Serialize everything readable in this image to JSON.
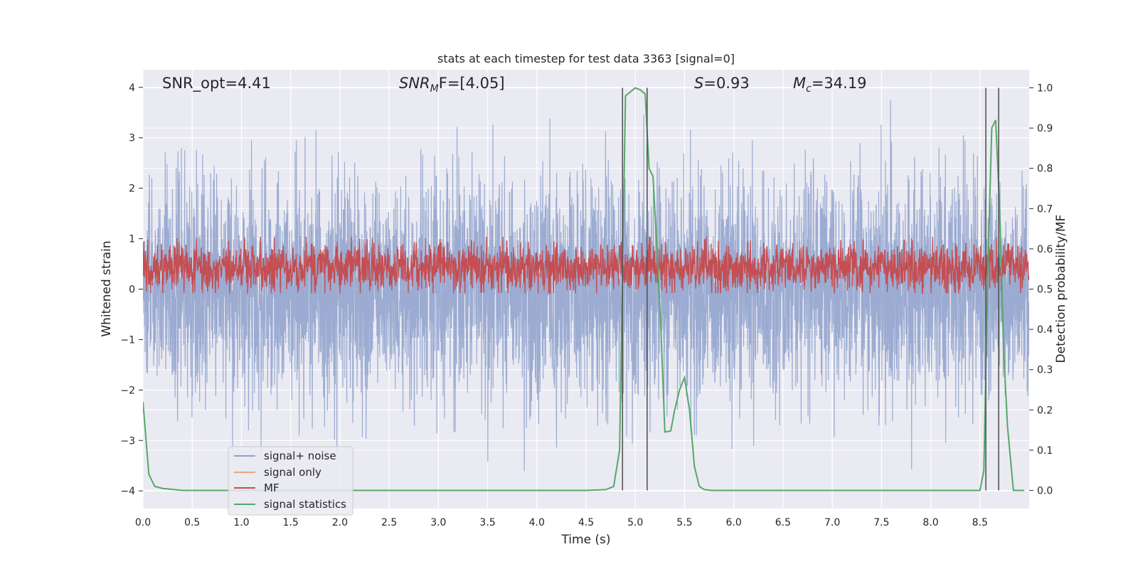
{
  "chart_data": {
    "type": "line",
    "title": "stats at each timestep for test data 3363 [signal=0]",
    "xlabel": "Time (s)",
    "ylabel": "Whitened strain",
    "y2label": "Detection probability/MF",
    "xlim": [
      0.0,
      9.0
    ],
    "ylim": [
      -4.35,
      4.35
    ],
    "y2lim": [
      -0.045,
      1.045
    ],
    "xticks": [
      0.0,
      0.5,
      1.0,
      1.5,
      2.0,
      2.5,
      3.0,
      3.5,
      4.0,
      4.5,
      5.0,
      5.5,
      6.0,
      6.5,
      7.0,
      7.5,
      8.0,
      8.5
    ],
    "xtick_labels": [
      "0.0",
      "0.5",
      "1.0",
      "1.5",
      "2.0",
      "2.5",
      "3.0",
      "3.5",
      "4.0",
      "4.5",
      "5.0",
      "5.5",
      "6.0",
      "6.5",
      "7.0",
      "7.5",
      "8.0",
      "8.5"
    ],
    "yticks": [
      4,
      3,
      2,
      1,
      0,
      -1,
      -2,
      -3,
      -4
    ],
    "ytick_labels": [
      "4",
      "3",
      "2",
      "1",
      "0",
      "−1",
      "−2",
      "−3",
      "−4"
    ],
    "y2ticks": [
      1.0,
      0.9,
      0.8,
      0.7,
      0.6,
      0.5,
      0.4,
      0.3,
      0.2,
      0.1,
      0.0
    ],
    "y2tick_labels": [
      "1.0",
      "0.9",
      "0.8",
      "0.7",
      "0.6",
      "0.5",
      "0.4",
      "0.3",
      "0.2",
      "0.1",
      "0.0"
    ],
    "annotations": {
      "snr_opt": "SNR_opt=4.41",
      "snr_mf_main": "SNR",
      "snr_mf_sub": "M",
      "snr_mf_tail": "F=[4.05]",
      "s_var": "S",
      "s_value": "=0.93",
      "mc_var": "M",
      "mc_sub": "c",
      "mc_value": "=34.19"
    },
    "legend": {
      "placement": "lower-left",
      "entries": [
        {
          "label": "signal+ noise",
          "color": "#8da0cb"
        },
        {
          "label": "signal only",
          "color": "#e8a48a"
        },
        {
          "label": "MF",
          "color": "#c44e52"
        },
        {
          "label": "signal statistics",
          "color": "#55a868"
        }
      ]
    },
    "series": [
      {
        "name": "signal+ noise",
        "axis": "left",
        "color": "#8da0cb",
        "description": "whitened strain, roughly gaussian noise with std ~1.1 sampled over 0-9 s",
        "std": 1.1,
        "sample_rate_per_s": 500,
        "peak_max": 3.9,
        "peak_min": -3.9
      },
      {
        "name": "signal only",
        "axis": "left",
        "color": "#e8a48a",
        "values": []
      },
      {
        "name": "MF",
        "axis": "right",
        "color": "#c44e52",
        "description": "matched filter output, noisy band between ~0.49 and ~0.62",
        "center": 0.555,
        "spread": 0.03,
        "min": 0.49,
        "max": 0.63
      },
      {
        "name": "signal statistics",
        "axis": "right",
        "color": "#55a868",
        "x": [
          0.0,
          0.06,
          0.12,
          0.2,
          0.4,
          1.0,
          2.0,
          3.0,
          4.0,
          4.5,
          4.7,
          4.78,
          4.84,
          4.9,
          4.95,
          5.0,
          5.05,
          5.1,
          5.14,
          5.18,
          5.22,
          5.26,
          5.3,
          5.36,
          5.4,
          5.45,
          5.5,
          5.55,
          5.6,
          5.65,
          5.7,
          5.78,
          6.0,
          7.0,
          8.0,
          8.5,
          8.54,
          8.58,
          8.62,
          8.66,
          8.7,
          8.74,
          8.78,
          8.84,
          8.9,
          8.95
        ],
        "y": [
          0.22,
          0.04,
          0.01,
          0.005,
          0.0,
          0.0,
          0.0,
          0.0,
          0.0,
          0.0,
          0.002,
          0.01,
          0.1,
          0.98,
          0.99,
          1.0,
          0.995,
          0.985,
          0.8,
          0.78,
          0.6,
          0.4,
          0.145,
          0.148,
          0.2,
          0.25,
          0.28,
          0.2,
          0.06,
          0.01,
          0.002,
          0.0,
          0.0,
          0.0,
          0.0,
          0.0,
          0.05,
          0.55,
          0.9,
          0.92,
          0.7,
          0.35,
          0.16,
          0.0,
          0.0,
          0.0
        ]
      }
    ],
    "vlines": {
      "color": "#555555",
      "y2_from": 0.0,
      "y2_to": 1.0,
      "x": [
        4.87,
        5.12,
        8.56,
        8.69
      ]
    }
  }
}
